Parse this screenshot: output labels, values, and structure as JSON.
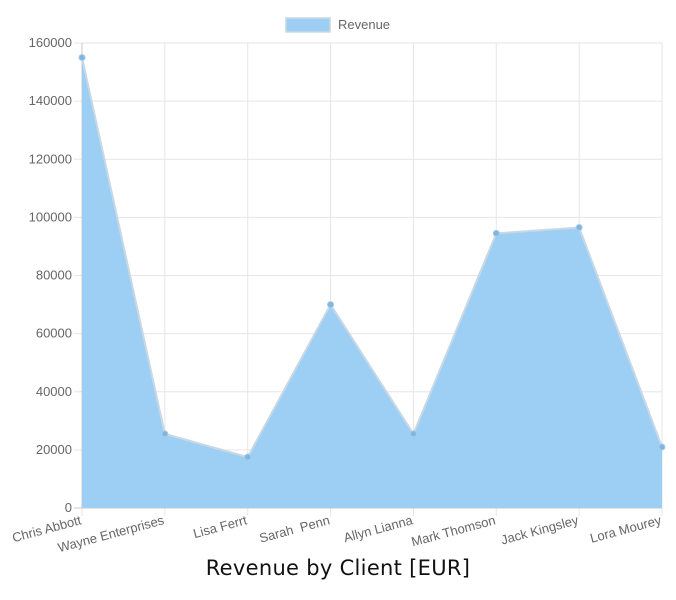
{
  "chart_data": {
    "type": "area",
    "title": "Revenue by Client [EUR]",
    "xlabel": "",
    "ylabel": "",
    "categories": [
      "Chris Abbott",
      "Wayne Enterprises",
      "Lisa Ferrt",
      "Sarah  Penn",
      "Allyn Lianna",
      "Mark Thomson",
      "Jack Kingsley",
      "Lora Mourey"
    ],
    "series": [
      {
        "name": "Revenue",
        "values": [
          155000,
          25500,
          17500,
          70000,
          25500,
          94500,
          96500,
          21000
        ]
      }
    ],
    "ylim": [
      0,
      160000
    ],
    "yticks": [
      "0",
      "20000",
      "40000",
      "60000",
      "80000",
      "100000",
      "120000",
      "140000",
      "160000"
    ],
    "grid": true,
    "legend_position": "top-center",
    "colors": {
      "fill": "#9ccff3",
      "line": "#c8d8e4",
      "point": "#7fb6e0",
      "grid": "#e6e6e6",
      "axis": "#c8c8c8"
    }
  }
}
